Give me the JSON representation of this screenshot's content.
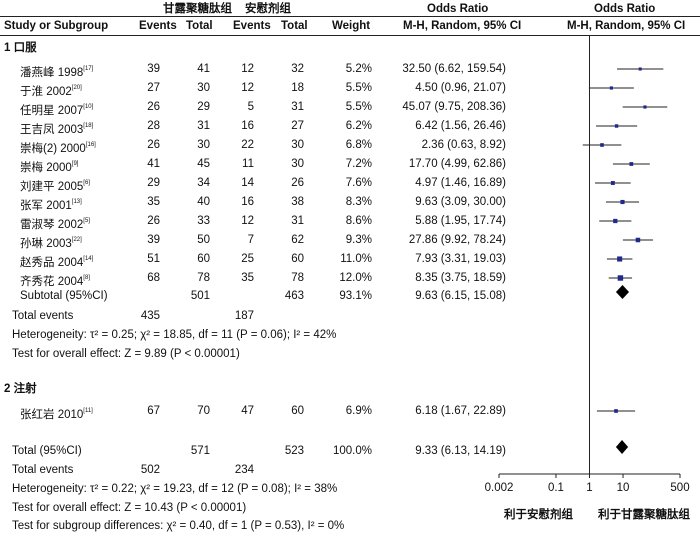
{
  "headers": {
    "study": "Study or Subgroup",
    "group1": "甘露聚糖肽组",
    "group2": "安慰剂组",
    "events": "Events",
    "total": "Total",
    "weight": "Weight",
    "or_title": "Odds Ratio",
    "or_method": "M-H, Random, 95% CI",
    "plot_title": "Odds Ratio",
    "plot_method": "M-H, Random, 95% CI"
  },
  "subgroup1": {
    "title": "1 口服",
    "subtotal": {
      "label": "Subtotal (95%CI)",
      "total1": "501",
      "total2": "463",
      "weight": "93.1%",
      "or": "9.63 (6.15, 15.08)"
    },
    "total_events": {
      "label": "Total events",
      "e1": "435",
      "e2": "187"
    },
    "heterogeneity": "Heterogeneity: τ² = 0.25; χ² = 18.85, df = 11 (P = 0.06); I² = 42%",
    "overall": "Test for overall effect: Z = 9.89 (P < 0.00001)"
  },
  "subgroup2": {
    "title": "2 注射"
  },
  "studies": [
    {
      "name": "潘燕峰 1998",
      "ref": "17",
      "e1": "39",
      "n1": "41",
      "e2": "12",
      "n2": "32",
      "weight": "5.2%",
      "or": "32.50 (6.62, 159.54)"
    },
    {
      "name": "于淮 2002",
      "ref": "20",
      "e1": "27",
      "n1": "30",
      "e2": "12",
      "n2": "18",
      "weight": "5.5%",
      "or": "4.50 (0.96, 21.07)"
    },
    {
      "name": "任明星 2007",
      "ref": "10",
      "e1": "26",
      "n1": "29",
      "e2": "5",
      "n2": "31",
      "weight": "5.5%",
      "or": "45.07 (9.75, 208.36)"
    },
    {
      "name": "王吉凤 2003",
      "ref": "18",
      "e1": "28",
      "n1": "31",
      "e2": "16",
      "n2": "27",
      "weight": "6.2%",
      "or": "6.42 (1.56, 26.46)"
    },
    {
      "name": "崇梅(2) 2000",
      "ref": "16",
      "e1": "26",
      "n1": "30",
      "e2": "22",
      "n2": "30",
      "weight": "6.8%",
      "or": "2.36 (0.63, 8.92)"
    },
    {
      "name": "崇梅 2000",
      "ref": "9",
      "e1": "41",
      "n1": "45",
      "e2": "11",
      "n2": "30",
      "weight": "7.2%",
      "or": "17.70 (4.99, 62.86)"
    },
    {
      "name": "刘建平 2005",
      "ref": "6",
      "e1": "29",
      "n1": "34",
      "e2": "14",
      "n2": "26",
      "weight": "7.6%",
      "or": "4.97 (1.46, 16.89)"
    },
    {
      "name": "张军 2001",
      "ref": "13",
      "e1": "35",
      "n1": "40",
      "e2": "16",
      "n2": "38",
      "weight": "8.3%",
      "or": "9.63 (3.09, 30.00)"
    },
    {
      "name": "雷淑琴 2002",
      "ref": "5",
      "e1": "26",
      "n1": "33",
      "e2": "12",
      "n2": "31",
      "weight": "8.6%",
      "or": "5.88 (1.95, 17.74)"
    },
    {
      "name": "孙琳 2003",
      "ref": "22",
      "e1": "39",
      "n1": "50",
      "e2": "7",
      "n2": "62",
      "weight": "9.3%",
      "or": "27.86 (9.92, 78.24)"
    },
    {
      "name": "赵秀品 2004",
      "ref": "14",
      "e1": "51",
      "n1": "60",
      "e2": "25",
      "n2": "60",
      "weight": "11.0%",
      "or": "7.93 (3.31, 19.03)"
    },
    {
      "name": "齐秀花 2004",
      "ref": "8",
      "e1": "68",
      "n1": "78",
      "e2": "35",
      "n2": "78",
      "weight": "12.0%",
      "or": "8.35 (3.75, 18.59)"
    },
    {
      "name": "张红岩 2010",
      "ref": "11",
      "e1": "67",
      "n1": "70",
      "e2": "47",
      "n2": "60",
      "weight": "6.9%",
      "or": "6.18 (1.67, 22.89)"
    }
  ],
  "total": {
    "label": "Total (95%CI)",
    "total1": "571",
    "total2": "523",
    "weight": "100.0%",
    "or": "9.33 (6.13, 14.19)",
    "events_label": "Total events",
    "e1": "502",
    "e2": "234",
    "heterogeneity": "Heterogeneity: τ² = 0.22; χ² = 19.23, df = 12 (P = 0.08); I² = 38%",
    "overall": "Test for overall effect: Z = 10.43 (P < 0.00001)",
    "subgroup_diff": "Test for subgroup differences: χ² = 0.40, df = 1 (P = 0.53), I² = 0%"
  },
  "axis": {
    "ticks": [
      "0.002",
      "0.1",
      "1",
      "10",
      "500"
    ],
    "favours_left": "利于安慰剂组",
    "favours_right": "利于甘露聚糖肽组"
  },
  "chart_data": {
    "type": "forest",
    "scale": "log",
    "xlim": [
      0.002,
      500
    ],
    "reference_line": 1,
    "studies": [
      {
        "label": "潘燕峰 1998",
        "or": 32.5,
        "lo": 6.62,
        "hi": 159.54
      },
      {
        "label": "于淮 2002",
        "or": 4.5,
        "lo": 0.96,
        "hi": 21.07
      },
      {
        "label": "任明星 2007",
        "or": 45.07,
        "lo": 9.75,
        "hi": 208.36
      },
      {
        "label": "王吉凤 2003",
        "or": 6.42,
        "lo": 1.56,
        "hi": 26.46
      },
      {
        "label": "崇梅(2) 2000",
        "or": 2.36,
        "lo": 0.63,
        "hi": 8.92
      },
      {
        "label": "崇梅 2000",
        "or": 17.7,
        "lo": 4.99,
        "hi": 62.86
      },
      {
        "label": "刘建平 2005",
        "or": 4.97,
        "lo": 1.46,
        "hi": 16.89
      },
      {
        "label": "张军 2001",
        "or": 9.63,
        "lo": 3.09,
        "hi": 30.0
      },
      {
        "label": "雷淑琴 2002",
        "or": 5.88,
        "lo": 1.95,
        "hi": 17.74
      },
      {
        "label": "孙琳 2003",
        "or": 27.86,
        "lo": 9.92,
        "hi": 78.24
      },
      {
        "label": "赵秀品 2004",
        "or": 7.93,
        "lo": 3.31,
        "hi": 19.03
      },
      {
        "label": "齐秀花 2004",
        "or": 8.35,
        "lo": 3.75,
        "hi": 18.59
      },
      {
        "label": "张红岩 2010",
        "or": 6.18,
        "lo": 1.67,
        "hi": 22.89
      }
    ],
    "pooled": [
      {
        "label": "Subtotal (95%CI)",
        "or": 9.63,
        "lo": 6.15,
        "hi": 15.08
      },
      {
        "label": "Total (95%CI)",
        "or": 9.33,
        "lo": 6.13,
        "hi": 14.19
      }
    ]
  }
}
